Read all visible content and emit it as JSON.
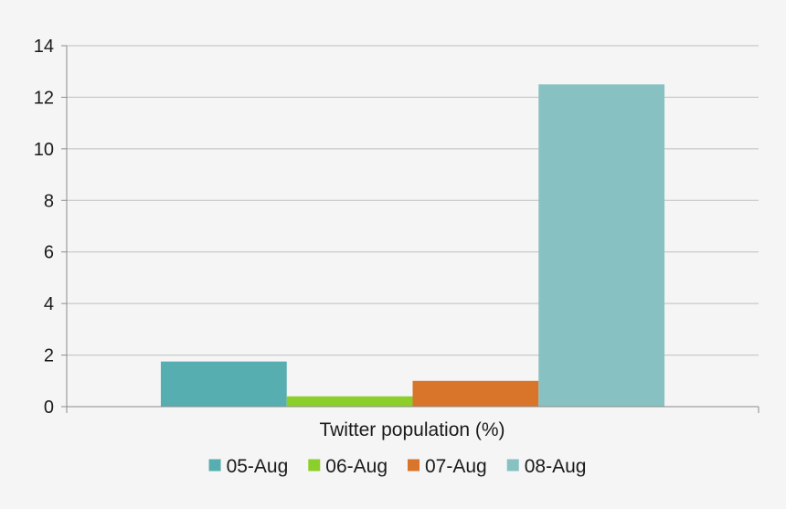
{
  "chart_data": {
    "type": "bar",
    "title": "",
    "xlabel": "Twitter population (%)",
    "ylabel": "",
    "categories": [
      "Twitter population (%)"
    ],
    "series": [
      {
        "name": "05-Aug",
        "values": [
          1.75
        ],
        "color": "#56aeb0"
      },
      {
        "name": "06-Aug",
        "values": [
          0.4
        ],
        "color": "#8ccf2a"
      },
      {
        "name": "07-Aug",
        "values": [
          1.0
        ],
        "color": "#d8752a"
      },
      {
        "name": "08-Aug",
        "values": [
          12.5
        ],
        "color": "#88c1c2"
      }
    ],
    "ylim": [
      0,
      14
    ],
    "yticks": [
      "0",
      "2",
      "4",
      "6",
      "8",
      "10",
      "12",
      "14"
    ],
    "grid": true,
    "legend": "bottom",
    "gridline_color": "#bfbfbf",
    "background_color": "#f5f5f5"
  }
}
